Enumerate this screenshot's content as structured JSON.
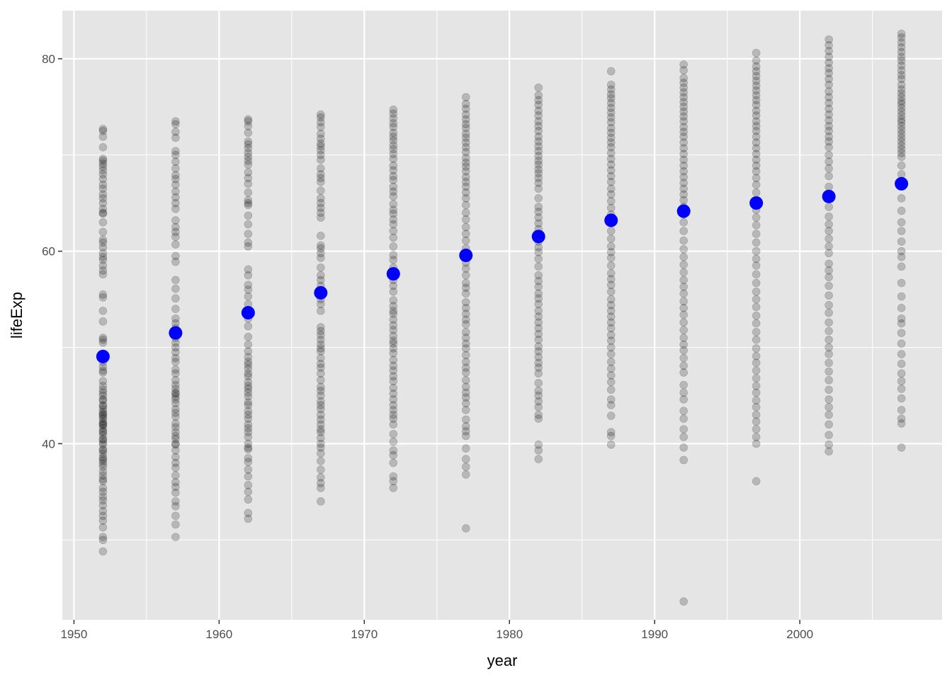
{
  "chart_data": {
    "type": "scatter",
    "title": "",
    "xlabel": "year",
    "ylabel": "lifeExp",
    "xlim": [
      1949.2,
      2009.8
    ],
    "ylim": [
      21.7,
      85.0
    ],
    "x_ticks": [
      1950,
      1960,
      1970,
      1980,
      1990,
      2000
    ],
    "x_tick_labels": [
      "1950",
      "1960",
      "1970",
      "1980",
      "1990",
      "2000"
    ],
    "y_ticks": [
      40,
      60,
      80
    ],
    "y_tick_labels": [
      "40",
      "60",
      "80"
    ],
    "grid": true,
    "legend": "none",
    "colors": {
      "panel": "#e5e5e5",
      "grid": "#ffffff",
      "points": "#000000",
      "means": "#0000ff"
    },
    "series": [
      {
        "x": [
          1952,
          1957,
          1962,
          1967,
          1972,
          1977,
          1982,
          1987,
          1992,
          1997,
          2002,
          2007
        ],
        "values": [
          [
            28.8,
            30.0,
            30.3,
            31.3,
            32.0,
            32.5,
            33.0,
            33.6,
            34.1,
            34.5,
            35.0,
            35.4,
            36.1,
            36.3,
            36.7,
            37.1,
            37.6,
            37.9,
            38.2,
            38.4,
            38.6,
            39.0,
            39.3,
            39.4,
            39.9,
            40.1,
            40.4,
            40.5,
            40.9,
            41.2,
            41.3,
            41.6,
            41.9,
            42.0,
            42.1,
            42.3,
            42.6,
            42.8,
            43.0,
            43.1,
            43.3,
            43.6,
            43.9,
            44.0,
            44.5,
            44.6,
            45.0,
            45.3,
            45.6,
            46.0,
            46.5,
            47.4,
            47.6,
            48.0,
            48.5,
            49.0,
            50.5,
            50.8,
            51.0,
            52.7,
            53.8,
            55.2,
            55.5,
            57.6,
            58.0,
            58.5,
            59.1,
            59.4,
            59.8,
            60.4,
            60.9,
            61.2,
            62.0,
            63.0,
            63.9,
            64.0,
            64.4,
            65.0,
            65.5,
            65.9,
            66.5,
            66.9,
            67.5,
            68.0,
            68.4,
            68.8,
            69.1,
            69.4,
            69.6,
            70.8,
            71.9,
            72.5,
            72.7
          ],
          [
            30.3,
            31.6,
            32.5,
            33.5,
            34.0,
            34.9,
            35.5,
            36.0,
            36.7,
            37.5,
            38.0,
            38.6,
            39.3,
            39.9,
            40.0,
            40.5,
            40.8,
            41.2,
            41.7,
            42.1,
            42.8,
            43.2,
            43.6,
            44.2,
            44.6,
            44.9,
            45.2,
            45.3,
            45.7,
            46.1,
            46.6,
            47.3,
            47.7,
            48.5,
            48.9,
            49.5,
            50.0,
            50.5,
            51.0,
            51.5,
            52.0,
            52.5,
            53.0,
            54.0,
            55.1,
            56.1,
            57.0,
            58.9,
            59.5,
            60.7,
            61.5,
            62.0,
            62.5,
            63.2,
            64.4,
            65.0,
            65.6,
            66.2,
            66.9,
            67.5,
            67.9,
            68.6,
            69.3,
            70.0,
            70.4,
            71.8,
            72.4,
            73.2,
            73.5
          ],
          [
            32.2,
            32.8,
            34.2,
            35.0,
            35.7,
            36.6,
            37.3,
            38.1,
            38.5,
            39.4,
            39.6,
            40.0,
            40.7,
            41.2,
            41.6,
            42.0,
            42.6,
            43.0,
            43.4,
            44.0,
            44.3,
            44.9,
            45.3,
            45.7,
            46.0,
            46.4,
            47.0,
            47.3,
            47.8,
            48.2,
            48.5,
            49.0,
            49.6,
            50.3,
            51.1,
            52.2,
            53.0,
            53.8,
            54.5,
            55.3,
            56.0,
            56.5,
            57.5,
            58.1,
            60.5,
            60.9,
            61.8,
            62.8,
            63.7,
            64.8,
            65.0,
            65.3,
            66.1,
            67.0,
            67.6,
            68.2,
            69.0,
            69.4,
            69.8,
            70.2,
            70.7,
            71.1,
            71.4,
            72.3,
            73.0,
            73.5,
            73.7
          ],
          [
            34.0,
            35.4,
            35.9,
            36.5,
            37.3,
            38.2,
            39.0,
            39.6,
            40.0,
            40.6,
            41.2,
            41.5,
            42.0,
            42.5,
            43.0,
            43.6,
            44.0,
            44.4,
            45.0,
            45.5,
            45.9,
            46.6,
            47.3,
            47.9,
            48.3,
            48.9,
            49.6,
            49.9,
            50.3,
            50.8,
            51.3,
            51.7,
            52.1,
            53.8,
            54.5,
            55.0,
            55.8,
            56.4,
            57.0,
            57.5,
            58.3,
            59.3,
            59.8,
            60.3,
            60.6,
            61.6,
            63.5,
            64.0,
            64.5,
            65.0,
            65.5,
            66.3,
            67.2,
            67.6,
            68.0,
            68.6,
            69.5,
            70.0,
            70.5,
            70.9,
            71.2,
            71.7,
            72.2,
            72.9,
            73.4,
            73.9,
            74.2
          ],
          [
            35.4,
            36.1,
            36.6,
            38.0,
            38.8,
            39.3,
            40.2,
            41.0,
            42.0,
            42.6,
            43.0,
            43.5,
            44.0,
            44.6,
            45.2,
            45.8,
            46.5,
            47.0,
            47.6,
            48.1,
            48.7,
            49.4,
            49.9,
            50.4,
            50.7,
            51.2,
            51.8,
            52.3,
            52.9,
            53.5,
            53.8,
            54.3,
            54.9,
            55.8,
            56.4,
            57.0,
            57.6,
            58.3,
            59.1,
            59.6,
            60.5,
            61.4,
            62.1,
            62.8,
            63.3,
            63.9,
            64.3,
            64.9,
            65.7,
            66.2,
            66.7,
            67.4,
            67.8,
            68.4,
            68.9,
            69.6,
            70.1,
            70.6,
            71.0,
            71.5,
            71.9,
            72.3,
            72.9,
            73.3,
            73.8,
            74.3,
            74.7
          ],
          [
            31.2,
            36.8,
            37.6,
            38.4,
            39.5,
            40.8,
            41.3,
            41.8,
            42.5,
            43.5,
            44.2,
            44.8,
            45.3,
            45.9,
            46.6,
            47.4,
            47.9,
            48.5,
            49.2,
            49.9,
            50.4,
            51.0,
            51.6,
            52.4,
            52.9,
            53.5,
            54.1,
            54.7,
            55.6,
            56.2,
            56.7,
            57.5,
            58.2,
            58.8,
            59.4,
            60.3,
            61.1,
            61.8,
            62.5,
            63.3,
            64.0,
            64.8,
            65.5,
            66.1,
            66.7,
            67.2,
            67.7,
            68.3,
            68.8,
            69.2,
            69.7,
            70.3,
            70.8,
            71.3,
            71.8,
            72.2,
            72.8,
            73.2,
            73.7,
            74.2,
            74.8,
            75.3,
            76.0
          ],
          [
            38.4,
            39.3,
            39.9,
            42.6,
            43.0,
            43.8,
            44.4,
            45.0,
            45.5,
            46.3,
            47.3,
            47.9,
            48.4,
            49.0,
            49.6,
            50.1,
            50.8,
            51.4,
            52.0,
            52.6,
            53.2,
            53.8,
            54.5,
            55.1,
            55.6,
            56.3,
            56.9,
            57.5,
            58.4,
            59.2,
            59.9,
            60.4,
            61.0,
            61.7,
            62.3,
            62.9,
            63.5,
            64.1,
            64.6,
            65.5,
            66.5,
            67.1,
            67.6,
            68.1,
            68.5,
            69.0,
            69.4,
            69.9,
            70.4,
            70.9,
            71.4,
            71.9,
            72.5,
            73.0,
            73.5,
            74.1,
            74.6,
            75.2,
            75.7,
            76.2,
            77.0
          ],
          [
            39.9,
            40.8,
            41.2,
            42.9,
            44.0,
            44.6,
            45.6,
            46.4,
            47.1,
            47.8,
            48.5,
            49.3,
            50.0,
            50.7,
            51.3,
            52.0,
            52.6,
            53.2,
            53.8,
            54.4,
            55.0,
            55.8,
            56.5,
            57.1,
            57.7,
            58.5,
            59.3,
            59.9,
            60.5,
            61.3,
            62.1,
            63.0,
            63.8,
            64.5,
            65.2,
            65.9,
            66.5,
            67.2,
            67.8,
            68.4,
            69.0,
            69.6,
            70.2,
            70.8,
            71.3,
            71.8,
            72.3,
            72.8,
            73.4,
            73.9,
            74.4,
            74.9,
            75.4,
            75.9,
            76.3,
            76.8,
            77.3,
            78.7
          ],
          [
            23.6,
            38.3,
            39.6,
            40.7,
            41.5,
            42.6,
            43.4,
            44.6,
            45.3,
            46.1,
            47.4,
            48.1,
            48.9,
            49.7,
            50.3,
            51.0,
            51.8,
            52.6,
            53.4,
            54.1,
            54.8,
            55.6,
            56.3,
            57.0,
            57.8,
            58.6,
            59.4,
            60.2,
            61.1,
            62.1,
            63.0,
            63.8,
            64.6,
            65.3,
            65.9,
            66.5,
            67.1,
            67.7,
            68.3,
            68.9,
            69.5,
            70.1,
            70.7,
            71.3,
            71.9,
            72.4,
            72.9,
            73.5,
            74.0,
            74.5,
            75.0,
            75.5,
            76.0,
            76.5,
            77.0,
            77.5,
            78.0,
            78.8,
            79.4
          ],
          [
            36.1,
            40.0,
            40.7,
            41.5,
            42.3,
            43.0,
            43.8,
            44.5,
            45.3,
            46.0,
            46.8,
            47.6,
            48.4,
            49.1,
            49.9,
            50.8,
            51.6,
            52.5,
            53.3,
            54.2,
            55.0,
            55.8,
            56.7,
            57.6,
            58.5,
            59.2,
            60.0,
            60.9,
            61.8,
            62.7,
            63.5,
            64.3,
            65.2,
            66.1,
            66.9,
            67.6,
            68.3,
            68.9,
            69.5,
            70.1,
            70.7,
            71.3,
            71.9,
            72.5,
            73.0,
            73.5,
            74.1,
            74.6,
            75.2,
            75.7,
            76.2,
            76.7,
            77.2,
            77.7,
            78.2,
            78.7,
            79.2,
            79.8,
            80.6
          ],
          [
            39.2,
            39.9,
            40.9,
            42.0,
            43.0,
            43.8,
            44.6,
            45.6,
            46.6,
            47.5,
            48.4,
            49.3,
            50.0,
            50.8,
            51.7,
            52.6,
            53.6,
            54.4,
            55.4,
            56.4,
            57.3,
            58.0,
            58.7,
            59.8,
            60.5,
            61.3,
            62.1,
            62.8,
            63.6,
            64.6,
            65.7,
            66.7,
            67.8,
            68.6,
            69.3,
            70.0,
            70.8,
            71.4,
            71.9,
            72.5,
            73.0,
            73.6,
            74.2,
            74.8,
            75.4,
            76.0,
            76.6,
            77.3,
            77.9,
            78.5,
            79.0,
            79.6,
            80.2,
            80.8,
            81.4,
            82.0
          ],
          [
            39.6,
            42.1,
            42.6,
            43.5,
            44.7,
            45.7,
            46.5,
            47.3,
            48.3,
            49.3,
            50.4,
            51.5,
            52.5,
            53.0,
            54.1,
            55.3,
            56.7,
            58.4,
            59.4,
            60.0,
            61.0,
            62.1,
            63.0,
            64.2,
            65.5,
            66.8,
            67.3,
            68.0,
            68.9,
            69.8,
            70.2,
            70.6,
            71.0,
            71.4,
            71.8,
            72.2,
            72.6,
            73.0,
            73.4,
            73.7,
            74.1,
            74.5,
            74.9,
            75.3,
            75.6,
            76.0,
            76.4,
            76.8,
            77.3,
            77.9,
            78.3,
            78.8,
            79.3,
            79.8,
            80.2,
            80.7,
            81.2,
            81.7,
            82.2,
            82.6
          ]
        ],
        "color": "#000000",
        "alpha": 0.2
      }
    ],
    "means": {
      "x": [
        1952,
        1957,
        1962,
        1967,
        1972,
        1977,
        1982,
        1987,
        1992,
        1997,
        2002,
        2007
      ],
      "values": [
        49.06,
        51.51,
        53.61,
        55.68,
        57.65,
        59.57,
        61.53,
        63.21,
        64.16,
        65.01,
        65.69,
        67.01
      ],
      "color": "#0000ff"
    }
  }
}
